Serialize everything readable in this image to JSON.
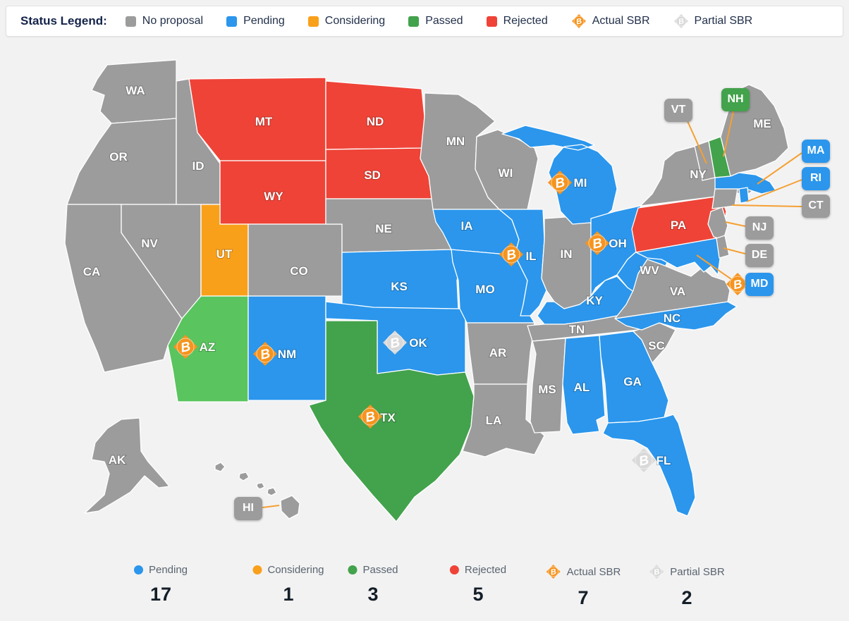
{
  "colors": {
    "no_proposal": "#9c9c9c",
    "pending": "#2b96ec",
    "considering": "#f9a01b",
    "passed": "#43a24c",
    "passed_light": "#5ac45f",
    "rejected": "#ef4337",
    "actual_sbr": "#f5941f",
    "partial_sbr": "#d9d9d9",
    "callout_line": "#f5a033",
    "state_border": "#ffffff",
    "background": "#f2f2f2"
  },
  "legend": {
    "title": "Status Legend:",
    "items": [
      {
        "label": "No proposal",
        "swatch": "square",
        "status": "no_proposal"
      },
      {
        "label": "Pending",
        "swatch": "square",
        "status": "pending"
      },
      {
        "label": "Considering",
        "swatch": "square",
        "status": "considering"
      },
      {
        "label": "Passed",
        "swatch": "square",
        "status": "passed"
      },
      {
        "label": "Rejected",
        "swatch": "square",
        "status": "rejected"
      },
      {
        "label": "Actual SBR",
        "swatch": "btc",
        "status": "actual_sbr"
      },
      {
        "label": "Partial SBR",
        "swatch": "btc",
        "status": "partial_sbr"
      }
    ]
  },
  "map": {
    "states": [
      {
        "code": "WA",
        "status": "no_proposal"
      },
      {
        "code": "OR",
        "status": "no_proposal"
      },
      {
        "code": "CA",
        "status": "no_proposal"
      },
      {
        "code": "NV",
        "status": "no_proposal"
      },
      {
        "code": "ID",
        "status": "no_proposal"
      },
      {
        "code": "MT",
        "status": "rejected"
      },
      {
        "code": "WY",
        "status": "rejected"
      },
      {
        "code": "UT",
        "status": "considering"
      },
      {
        "code": "CO",
        "status": "no_proposal"
      },
      {
        "code": "AZ",
        "status": "passed",
        "shade": "light",
        "sbr": "actual"
      },
      {
        "code": "NM",
        "status": "pending",
        "sbr": "actual"
      },
      {
        "code": "ND",
        "status": "rejected"
      },
      {
        "code": "SD",
        "status": "rejected"
      },
      {
        "code": "NE",
        "status": "no_proposal"
      },
      {
        "code": "KS",
        "status": "pending"
      },
      {
        "code": "OK",
        "status": "pending",
        "sbr": "partial"
      },
      {
        "code": "TX",
        "status": "passed",
        "sbr": "actual"
      },
      {
        "code": "MN",
        "status": "no_proposal"
      },
      {
        "code": "IA",
        "status": "pending"
      },
      {
        "code": "MO",
        "status": "pending"
      },
      {
        "code": "AR",
        "status": "no_proposal"
      },
      {
        "code": "LA",
        "status": "no_proposal"
      },
      {
        "code": "WI",
        "status": "no_proposal"
      },
      {
        "code": "IL",
        "status": "pending",
        "sbr": "actual"
      },
      {
        "code": "IN",
        "status": "no_proposal"
      },
      {
        "code": "MI",
        "status": "pending",
        "sbr": "actual"
      },
      {
        "code": "OH",
        "status": "pending",
        "sbr": "actual"
      },
      {
        "code": "KY",
        "status": "pending"
      },
      {
        "code": "TN",
        "status": "no_proposal"
      },
      {
        "code": "MS",
        "status": "no_proposal"
      },
      {
        "code": "AL",
        "status": "pending"
      },
      {
        "code": "GA",
        "status": "pending"
      },
      {
        "code": "SC",
        "status": "no_proposal"
      },
      {
        "code": "NC",
        "status": "pending"
      },
      {
        "code": "WV",
        "status": "pending"
      },
      {
        "code": "VA",
        "status": "no_proposal"
      },
      {
        "code": "PA",
        "status": "rejected"
      },
      {
        "code": "NY",
        "status": "no_proposal"
      },
      {
        "code": "NJ",
        "status": "no_proposal"
      },
      {
        "code": "MD",
        "status": "pending",
        "sbr": "actual"
      },
      {
        "code": "DE",
        "status": "no_proposal"
      },
      {
        "code": "VT",
        "status": "no_proposal"
      },
      {
        "code": "NH",
        "status": "passed"
      },
      {
        "code": "ME",
        "status": "no_proposal"
      },
      {
        "code": "MA",
        "status": "pending"
      },
      {
        "code": "RI",
        "status": "pending"
      },
      {
        "code": "CT",
        "status": "no_proposal"
      },
      {
        "code": "FL",
        "status": "pending",
        "sbr": "partial"
      },
      {
        "code": "AK",
        "status": "no_proposal"
      },
      {
        "code": "HI",
        "status": "no_proposal"
      }
    ]
  },
  "summary": {
    "items": [
      {
        "label": "Pending",
        "count": "17",
        "swatch": "dot",
        "status": "pending"
      },
      {
        "label": "Considering",
        "count": "1",
        "swatch": "dot",
        "status": "considering"
      },
      {
        "label": "Passed",
        "count": "3",
        "swatch": "dot",
        "status": "passed"
      },
      {
        "label": "Rejected",
        "count": "5",
        "swatch": "dot",
        "status": "rejected"
      },
      {
        "label": "Actual SBR",
        "count": "7",
        "swatch": "btc",
        "status": "actual_sbr"
      },
      {
        "label": "Partial SBR",
        "count": "2",
        "swatch": "btc",
        "status": "partial_sbr"
      }
    ]
  }
}
